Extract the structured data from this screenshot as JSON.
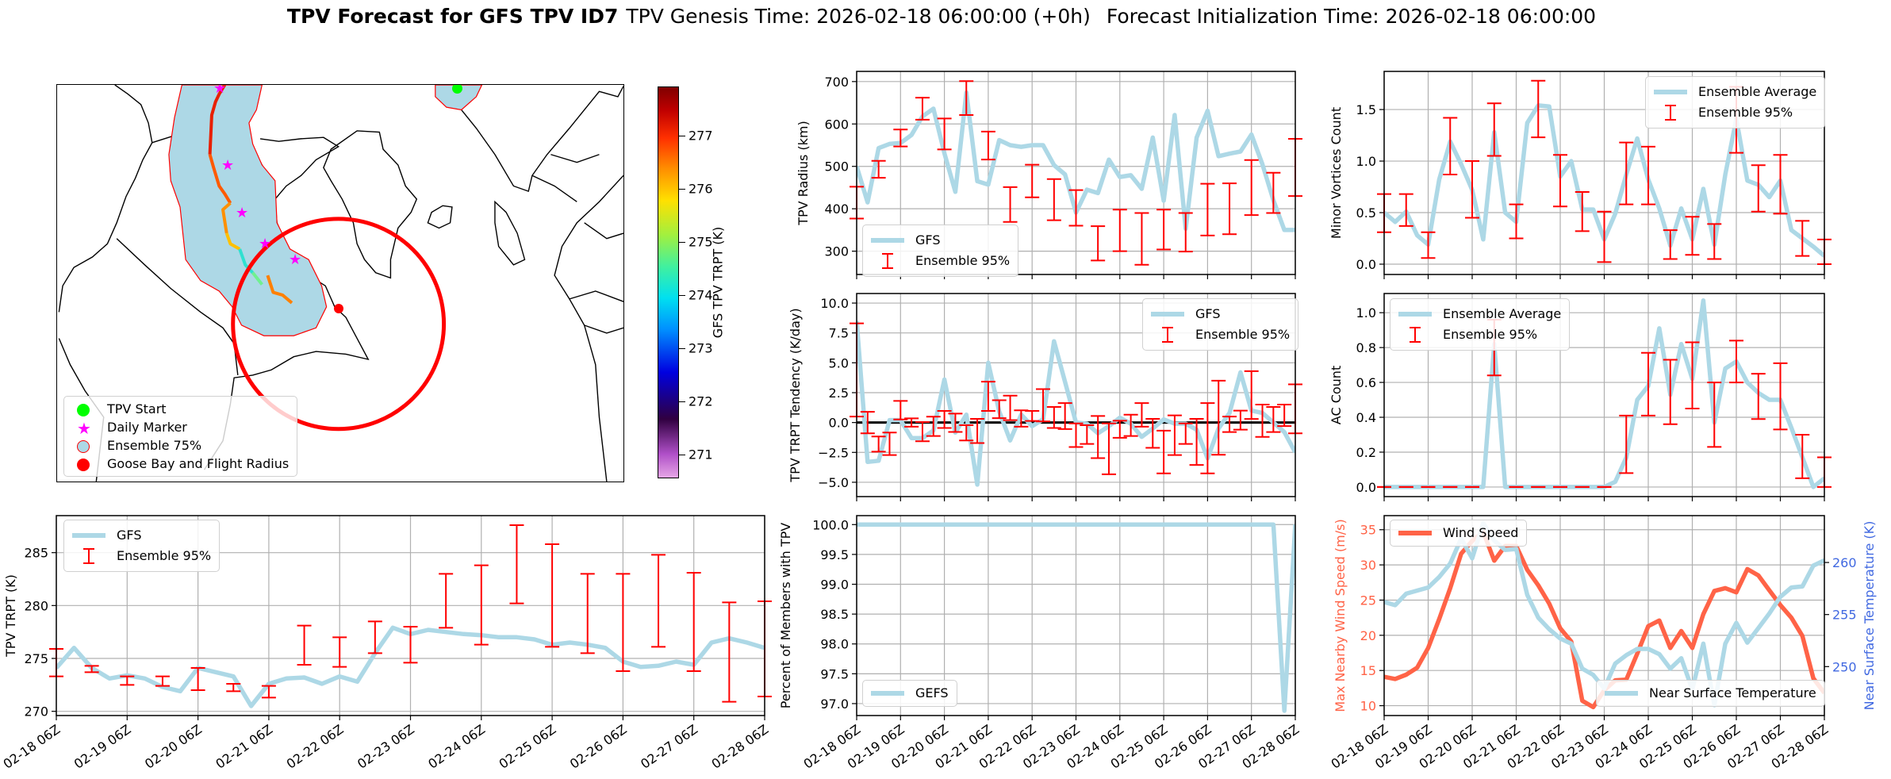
{
  "title": {
    "main": "TPV Forecast for GFS TPV ID7",
    "genesis": "TPV Genesis Time: 2026-02-18 06:00:00 (+0h)",
    "init": "Forecast Initialization Time: 2026-02-18 06:00:00"
  },
  "map": {
    "legend": [
      "TPV Start",
      "Daily Marker",
      "Ensemble 75%",
      "Goose Bay and Flight Radius"
    ],
    "colorbar": {
      "label": "GFS TPV TRPT (K)",
      "ticks": [
        271,
        272,
        273,
        274,
        275,
        276,
        277
      ],
      "tick_labels": [
        "271",
        "272",
        "273",
        "274",
        "275",
        "276",
        "277"
      ],
      "range": [
        270.55,
        277.93
      ]
    },
    "colors": {
      "track_start": "#00ff00",
      "daily_marker": "#ff00ff",
      "ensemble_fill": "#add8e6",
      "goose_bay": "#ff0000"
    }
  },
  "colors": {
    "gfs": "#add8e6",
    "ensemble": "#ff0000",
    "wind": "#ff6347",
    "temp_axis": "#4169e1"
  },
  "chart_data": [
    {
      "id": "radius",
      "type": "line",
      "ylabel": "TPV Radius (km)",
      "ylim": [
        245,
        724
      ],
      "yticks": [
        300,
        400,
        500,
        600,
        700
      ],
      "ytick_labels": [
        "300",
        "400",
        "500",
        "600",
        "700"
      ],
      "x_range_hours": [
        0,
        240
      ],
      "x_step_hours": 6,
      "legend": {
        "line": "GFS",
        "err": "Ensemble 95%"
      },
      "series": [
        {
          "name": "GFS",
          "values": [
            500,
            415,
            543,
            553,
            555,
            574,
            618,
            636,
            531,
            440,
            674,
            465,
            457,
            562,
            550,
            546,
            550,
            550,
            503,
            481,
            391,
            445,
            437,
            516,
            475,
            479,
            447,
            568,
            419,
            621,
            353,
            568,
            631,
            524,
            530,
            535,
            575,
            505,
            420,
            350,
            350
          ]
        }
      ],
      "errorbars": {
        "name": "Ensemble 95%",
        "step_hours": 12,
        "low": [
          377,
          473,
          547,
          610,
          540,
          621,
          516,
          369,
          427,
          373,
          360,
          278,
          300,
          268,
          304,
          299,
          337,
          340,
          385,
          390,
          430
        ],
        "high": [
          452,
          513,
          587,
          662,
          613,
          701,
          582,
          451,
          504,
          470,
          444,
          359,
          398,
          390,
          398,
          390,
          459,
          460,
          515,
          485,
          565
        ]
      }
    },
    {
      "id": "tendency",
      "type": "line",
      "ylabel": "TPV TRPT Tendency (K/day)",
      "ylim": [
        -6.2,
        10.8
      ],
      "yticks": [
        -5,
        -2.5,
        0,
        2.5,
        5,
        7.5,
        10
      ],
      "ytick_labels": [
        "−5.0",
        "−2.5",
        "0.0",
        "2.5",
        "5.0",
        "7.5",
        "10.0"
      ],
      "x_range_hours": [
        0,
        240
      ],
      "x_step_hours": 6,
      "zero_line": true,
      "legend": {
        "line": "GFS",
        "err": "Ensemble 95%"
      },
      "series": [
        {
          "name": "GFS",
          "values": [
            8.5,
            -3.3,
            -3.2,
            0.2,
            0.2,
            -1.3,
            -1.3,
            -0.66,
            3.6,
            -0.84,
            0.66,
            -5.2,
            5.0,
            0.93,
            -1.5,
            0.66,
            -0.3,
            0.26,
            6.8,
            3.4,
            0,
            -0.1,
            -0.9,
            -0.3,
            0.4,
            -0.1,
            -1.2,
            -0.5,
            0.26,
            -0.1,
            -0.1,
            -0.6,
            -3.0,
            -0.5,
            0.8,
            4.2,
            1.0,
            0.8,
            0.0,
            -0.8,
            -2.5
          ]
        }
      ],
      "errorbars": {
        "name": "Ensemble 95%",
        "step_hours": 6,
        "low": [
          0.5,
          -0.9,
          -2.44,
          -2.72,
          0.26,
          -0.35,
          -1.57,
          -1.13,
          -0.46,
          -0.79,
          -1.5,
          -1.72,
          0.97,
          0.37,
          0.2,
          -0.35,
          0.13,
          0.09,
          -0.46,
          -0.55,
          -2.05,
          -1.79,
          -2.98,
          -4.33,
          -1.28,
          -1.13,
          -0.35,
          -2.12,
          -4.26,
          -2.72,
          -1.79,
          -3.55,
          -4.26,
          -2.7,
          -0.8,
          -0.6,
          0.3,
          -1.2,
          -0.8,
          -0.3,
          -0.9
        ],
        "high": [
          8.3,
          0.9,
          -1.17,
          -0.84,
          1.81,
          0.35,
          0.04,
          0.49,
          0.97,
          0.75,
          -0.22,
          0.31,
          3.42,
          1.87,
          2.25,
          1.02,
          0.97,
          2.8,
          1.3,
          1.63,
          -0.07,
          -0.22,
          0.55,
          -0.07,
          0.15,
          0.66,
          1.63,
          0.31,
          -0.68,
          0.6,
          -0.07,
          0.31,
          1.63,
          3.5,
          0.5,
          1.0,
          4.3,
          1.5,
          1.3,
          1.5,
          3.2
        ]
      }
    },
    {
      "id": "percent",
      "type": "line",
      "ylabel": "Percent of Members with TPV",
      "ylim": [
        96.8,
        100.15
      ],
      "yticks": [
        97,
        97.5,
        98,
        98.5,
        99,
        99.5,
        100
      ],
      "ytick_labels": [
        "97.0",
        "97.5",
        "98.0",
        "98.5",
        "99.0",
        "99.5",
        "100.0"
      ],
      "x_range_hours": [
        0,
        240
      ],
      "x_step_hours": 6,
      "x_tick_labels": [
        "02-18 06Z",
        "02-19 06Z",
        "02-20 06Z",
        "02-21 06Z",
        "02-22 06Z",
        "02-23 06Z",
        "02-24 06Z",
        "02-25 06Z",
        "02-26 06Z",
        "02-27 06Z",
        "02-28 06Z"
      ],
      "legend": {
        "line": "GEFS"
      },
      "series": [
        {
          "name": "GEFS",
          "values": [
            100,
            100,
            100,
            100,
            100,
            100,
            100,
            100,
            100,
            100,
            100,
            100,
            100,
            100,
            100,
            100,
            100,
            100,
            100,
            100,
            100,
            100,
            100,
            100,
            100,
            100,
            100,
            100,
            100,
            100,
            100,
            100,
            100,
            100,
            100,
            100,
            100,
            100,
            100,
            96.88,
            100
          ]
        }
      ]
    },
    {
      "id": "trpt",
      "type": "line",
      "ylabel": "TPV TRPT (K)",
      "ylim": [
        269.6,
        288.5
      ],
      "yticks": [
        270,
        275,
        280,
        285
      ],
      "ytick_labels": [
        "270",
        "275",
        "280",
        "285"
      ],
      "x_range_hours": [
        0,
        240
      ],
      "x_step_hours": 6,
      "x_tick_labels": [
        "02-18 06Z",
        "02-19 06Z",
        "02-20 06Z",
        "02-21 06Z",
        "02-22 06Z",
        "02-23 06Z",
        "02-24 06Z",
        "02-25 06Z",
        "02-26 06Z",
        "02-27 06Z",
        "02-28 06Z"
      ],
      "legend": {
        "line": "GFS",
        "err": "Ensemble 95%"
      },
      "series": [
        {
          "name": "GFS",
          "values": [
            274.1,
            276.0,
            274.1,
            273.1,
            273.4,
            273.1,
            272.3,
            271.9,
            274.1,
            273.7,
            273.3,
            270.5,
            272.6,
            273.1,
            273.2,
            272.6,
            273.3,
            272.8,
            275.5,
            277.9,
            277.3,
            277.7,
            277.5,
            277.3,
            277.2,
            277.0,
            277.0,
            276.8,
            276.3,
            276.5,
            276.3,
            276.0,
            274.7,
            274.2,
            274.3,
            274.7,
            274.4,
            276.5,
            276.9,
            276.5,
            276.0
          ]
        }
      ],
      "errorbars": {
        "name": "Ensemble 95%",
        "step_hours": 12,
        "low": [
          273.3,
          273.7,
          272.5,
          272.4,
          272.0,
          271.9,
          271.3,
          274.4,
          274.2,
          275.5,
          274.6,
          277.9,
          276.3,
          280.2,
          276.1,
          275.5,
          273.8,
          276.1,
          273.8,
          270.9,
          271.4
        ],
        "high": [
          275.9,
          274.3,
          273.3,
          273.3,
          274.1,
          272.6,
          272.4,
          278.1,
          277.0,
          278.5,
          278.0,
          283.0,
          283.8,
          287.6,
          285.8,
          283.0,
          283.0,
          284.8,
          283.1,
          280.3,
          280.4
        ]
      }
    },
    {
      "id": "minor",
      "type": "line",
      "ylabel": "Minor Vortices Count",
      "ylim": [
        -0.1,
        1.87
      ],
      "yticks": [
        0,
        0.5,
        1,
        1.5
      ],
      "ytick_labels": [
        "0.0",
        "0.5",
        "1.0",
        "1.5"
      ],
      "x_range_hours": [
        0,
        240
      ],
      "x_step_hours": 6,
      "legend": {
        "line": "Ensemble Average",
        "err": "Ensemble 95%"
      },
      "series": [
        {
          "name": "Ensemble Average",
          "values": [
            0.5,
            0.41,
            0.51,
            0.28,
            0.19,
            0.82,
            1.19,
            0.97,
            0.72,
            0.24,
            1.28,
            0.5,
            0.41,
            1.37,
            1.54,
            1.53,
            0.85,
            1.0,
            0.53,
            0.53,
            0.24,
            0.49,
            0.87,
            1.22,
            0.82,
            0.54,
            0.18,
            0.54,
            0.24,
            0.73,
            0.19,
            0.87,
            1.41,
            0.81,
            0.77,
            0.65,
            0.81,
            0.33,
            0.25,
            0.17,
            0.08
          ]
        }
      ],
      "errorbars": {
        "name": "Ensemble 95%",
        "step_hours": 12,
        "low": [
          0.31,
          0.37,
          0.06,
          0.87,
          0.45,
          1.05,
          0.25,
          1.23,
          0.56,
          0.32,
          0.02,
          0.58,
          0.58,
          0.05,
          0.09,
          0.05,
          1.08,
          0.51,
          0.49,
          0.08,
          0.0
        ],
        "high": [
          0.68,
          0.68,
          0.31,
          1.42,
          1.0,
          1.56,
          0.58,
          1.78,
          1.06,
          0.7,
          0.51,
          1.18,
          1.14,
          0.33,
          0.46,
          0.39,
          1.72,
          0.96,
          1.06,
          0.42,
          0.24
        ]
      }
    },
    {
      "id": "ac",
      "type": "line",
      "ylabel": "AC Count",
      "ylim": [
        -0.055,
        1.11
      ],
      "yticks": [
        0,
        0.2,
        0.4,
        0.6,
        0.8,
        1.0
      ],
      "ytick_labels": [
        "0.0",
        "0.2",
        "0.4",
        "0.6",
        "0.8",
        "1.0"
      ],
      "x_range_hours": [
        0,
        240
      ],
      "x_step_hours": 6,
      "legend": {
        "line": "Ensemble Average",
        "err": "Ensemble 95%"
      },
      "series": [
        {
          "name": "Ensemble Average",
          "values": [
            0,
            0,
            0,
            0,
            0,
            0,
            0,
            0,
            0,
            0,
            0.82,
            0,
            0,
            0,
            0,
            0,
            0,
            0,
            0,
            0,
            0,
            0.03,
            0.17,
            0.5,
            0.58,
            0.91,
            0.53,
            0.82,
            0.62,
            1.07,
            0.37,
            0.68,
            0.72,
            0.6,
            0.54,
            0.5,
            0.5,
            0.34,
            0.17,
            0.0,
            0.05
          ]
        }
      ],
      "errorbars": {
        "name": "Ensemble 95%",
        "step_hours": 12,
        "low": [
          0,
          0,
          0,
          0,
          0,
          0.64,
          0,
          0,
          0,
          0,
          0,
          0.08,
          0.41,
          0.36,
          0.45,
          0.23,
          0.6,
          0.39,
          0.33,
          0.05,
          0
        ],
        "high": [
          0,
          0,
          0,
          0,
          0,
          0.96,
          0,
          0,
          0,
          0,
          0,
          0.41,
          0.77,
          0.73,
          0.83,
          0.6,
          0.84,
          0.65,
          0.71,
          0.3,
          0.17
        ]
      }
    },
    {
      "id": "wind",
      "type": "line",
      "ylabel": "Max Nearby Wind Speed (m/s)",
      "ylim": [
        8.6,
        37.0
      ],
      "yticks": [
        10,
        15,
        20,
        25,
        30,
        35
      ],
      "ytick_labels": [
        "10",
        "15",
        "20",
        "25",
        "30",
        "35"
      ],
      "ylabel_right": "Near Surface Temperature (K)",
      "ylim_right": [
        245.3,
        264.5
      ],
      "yticks_right": [
        250,
        255,
        260
      ],
      "ytick_labels_right": [
        "250",
        "255",
        "260"
      ],
      "x_range_hours": [
        0,
        240
      ],
      "x_step_hours": 6,
      "x_tick_labels": [
        "02-18 06Z",
        "02-19 06Z",
        "02-20 06Z",
        "02-21 06Z",
        "02-22 06Z",
        "02-23 06Z",
        "02-24 06Z",
        "02-25 06Z",
        "02-26 06Z",
        "02-27 06Z",
        "02-28 06Z"
      ],
      "legend": {
        "line": "Wind Speed",
        "line_right": "Near Surface Temperature"
      },
      "series": [
        {
          "name": "Wind Speed",
          "axis": "left",
          "values": [
            14.1,
            13.8,
            14.4,
            15.4,
            18.2,
            22.3,
            26.7,
            31.6,
            33.4,
            34.7,
            30.6,
            32.7,
            32.7,
            29.3,
            27.1,
            24.5,
            21.0,
            19.1,
            10.7,
            9.8,
            12.2,
            13.6,
            13.7,
            17.4,
            21.3,
            22.1,
            18.2,
            20.6,
            18.2,
            23.0,
            26.3,
            26.7,
            26.1,
            29.4,
            28.5,
            26.4,
            24.3,
            22.5,
            19.9,
            13.9,
            11.8
          ]
        },
        {
          "name": "Near Surface Temperature",
          "axis": "right",
          "values": [
            256.2,
            255.9,
            257.0,
            257.3,
            257.6,
            258.6,
            259.9,
            262.3,
            260.4,
            263.8,
            262.1,
            261.2,
            261.3,
            256.9,
            254.7,
            253.6,
            252.7,
            252.2,
            249.8,
            249.2,
            247.9,
            250.3,
            251.1,
            251.7,
            251.7,
            251.2,
            249.8,
            250.8,
            247.8,
            252.2,
            246.3,
            252.2,
            254.2,
            252.3,
            253.7,
            255.1,
            256.7,
            257.6,
            257.7,
            259.7,
            260.2
          ]
        }
      ]
    }
  ]
}
